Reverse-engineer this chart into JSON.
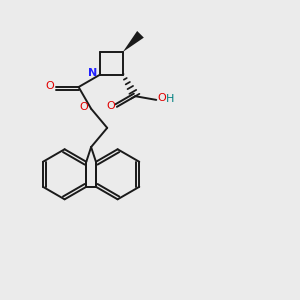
{
  "bg_color": "#ebebeb",
  "bond_color": "#1a1a1a",
  "N_color": "#2020ff",
  "O_color": "#e00000",
  "H_color": "#008080",
  "lw": 1.4,
  "figsize": [
    3.0,
    3.0
  ],
  "dpi": 100,
  "xlim": [
    0.0,
    1.0
  ],
  "ylim": [
    0.0,
    1.0
  ]
}
